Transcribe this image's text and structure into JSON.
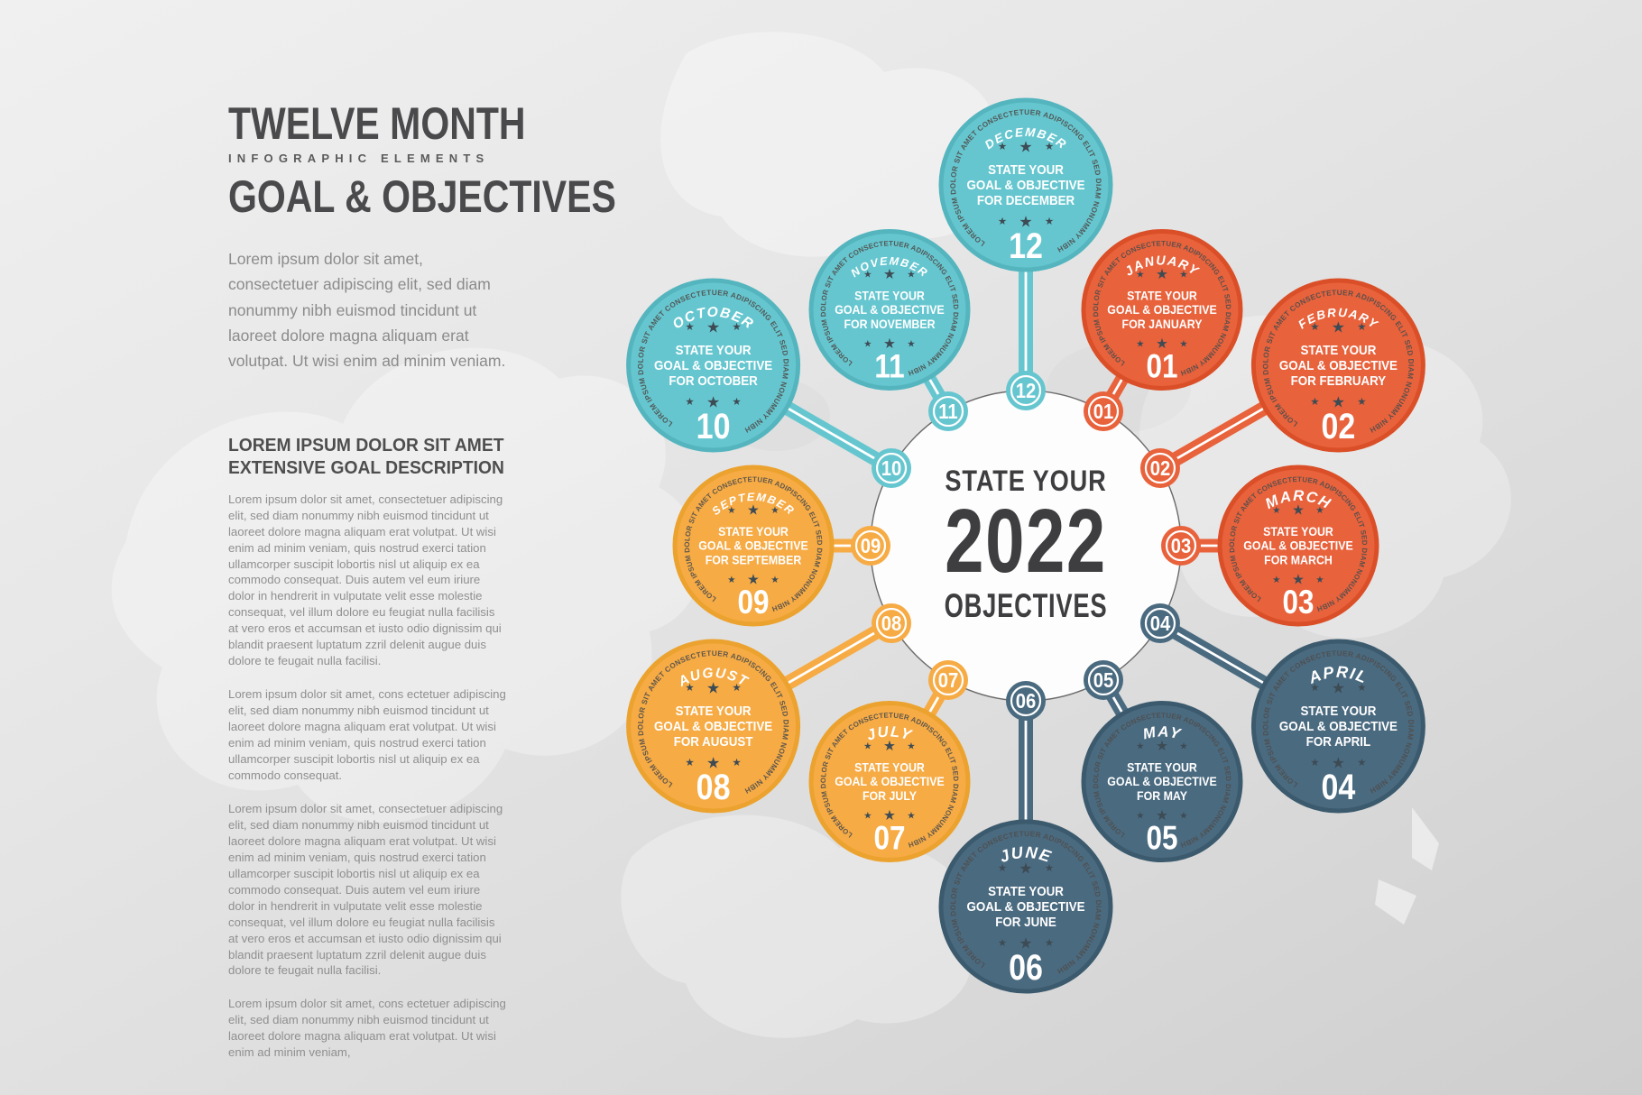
{
  "header": {
    "title1": "TWELVE MONTH",
    "subtitle": "INFOGRAPHIC ELEMENTS",
    "title2": "GOAL & OBJECTIVES",
    "intro": "Lorem ipsum dolor sit amet, consectetuer adipiscing elit, sed diam nonummy nibh euismod tincidunt ut laoreet dolore magna aliquam erat volutpat. Ut wisi enim ad minim veniam."
  },
  "section": {
    "heading1": "LOREM IPSUM DOLOR SIT AMET",
    "heading2": "EXTENSIVE GOAL DESCRIPTION",
    "paragraphs": [
      "Lorem ipsum dolor sit amet, consectetuer adipiscing elit, sed diam nonummy nibh euismod tincidunt ut laoreet dolore magna aliquam erat volutpat. Ut wisi enim ad minim veniam, quis nostrud exerci tation ullamcorper suscipit lobortis nisl ut aliquip ex ea commodo consequat. Duis autem vel eum iriure dolor in hendrerit in vulputate velit esse molestie consequat, vel illum dolore eu feugiat nulla facilisis at vero eros et accumsan et iusto odio dignissim qui blandit praesent luptatum zzril delenit augue duis dolore te feugait nulla facilisi.",
      "Lorem ipsum dolor sit amet, cons ectetuer adipiscing elit, sed diam nonummy nibh euismod tincidunt ut laoreet dolore magna aliquam erat volutpat. Ut wisi enim ad minim veniam, quis nostrud exerci tation ullamcorper suscipit lobortis nisl ut aliquip ex ea commodo consequat.",
      "Lorem ipsum dolor sit amet, consectetuer adipiscing elit, sed diam nonummy nibh euismod tincidunt ut laoreet dolore magna aliquam erat volutpat. Ut wisi enim ad minim veniam, quis nostrud exerci tation ullamcorper suscipit lobortis nisl ut aliquip ex ea commodo consequat. Duis autem vel eum iriure dolor in hendrerit in vulputate velit esse molestie consequat, vel illum dolore eu feugiat nulla facilisis at vero eros et accumsan et iusto odio dignissim qui blandit praesent luptatum zzril delenit augue duis dolore te feugait nulla facilisi.",
      "Lorem ipsum dolor sit amet, cons ectetuer adipiscing elit, sed diam nonummy nibh euismod tincidunt ut laoreet dolore magna aliquam erat volutpat. Ut wisi enim ad minim veniam,"
    ]
  },
  "infographic": {
    "center": {
      "top": "STATE YOUR",
      "year": "2022",
      "bottom": "OBJECTIVES"
    },
    "edge_text": "LOREM IPSUM DOLOR SIT AMET CONSECTETUER ADIPISCING ELIT SED DIAM NONUMMY NIBH",
    "palette": {
      "teal": {
        "fill": "#66c6cf",
        "edge": "#54b5bf"
      },
      "red": {
        "fill": "#e8623c",
        "edge": "#da4f27"
      },
      "slate": {
        "fill": "#4a6a80",
        "edge": "#3c5a6d"
      },
      "yellow": {
        "fill": "#f6ab45",
        "edge": "#eca22e"
      }
    },
    "star_color": "#3d4b54",
    "edge_text_color": "#4f4e4c",
    "ring_color": "#6b6b6b",
    "center_text_color": "#3e3e40",
    "months": [
      {
        "name": "JANUARY",
        "num": "01",
        "group": "red",
        "lines": [
          "STATE YOUR",
          "GOAL & OBJECTIVE",
          "FOR JANUARY"
        ]
      },
      {
        "name": "FEBRUARY",
        "num": "02",
        "group": "red",
        "lines": [
          "STATE YOUR",
          "GOAL & OBJECTIVE",
          "FOR FEBRUARY"
        ]
      },
      {
        "name": "MARCH",
        "num": "03",
        "group": "red",
        "lines": [
          "STATE YOUR",
          "GOAL & OBJECTIVE",
          "FOR MARCH"
        ]
      },
      {
        "name": "APRIL",
        "num": "04",
        "group": "slate",
        "lines": [
          "STATE YOUR",
          "GOAL & OBJECTIVE",
          "FOR APRIL"
        ]
      },
      {
        "name": "MAY",
        "num": "05",
        "group": "slate",
        "lines": [
          "STATE YOUR",
          "GOAL & OBJECTIVE",
          "FOR MAY"
        ]
      },
      {
        "name": "JUNE",
        "num": "06",
        "group": "slate",
        "lines": [
          "STATE YOUR",
          "GOAL & OBJECTIVE",
          "FOR JUNE"
        ]
      },
      {
        "name": "JULY",
        "num": "07",
        "group": "yellow",
        "lines": [
          "STATE YOUR",
          "GOAL & OBJECTIVE",
          "FOR JULY"
        ]
      },
      {
        "name": "AUGUST",
        "num": "08",
        "group": "yellow",
        "lines": [
          "STATE YOUR",
          "GOAL & OBJECTIVE",
          "FOR AUGUST"
        ]
      },
      {
        "name": "SEPTEMBER",
        "num": "09",
        "group": "yellow",
        "lines": [
          "STATE YOUR",
          "GOAL & OBJECTIVE",
          "FOR SEPTEMBER"
        ]
      },
      {
        "name": "OCTOBER",
        "num": "10",
        "group": "teal",
        "lines": [
          "STATE YOUR",
          "GOAL & OBJECTIVE",
          "FOR OCTOBER"
        ]
      },
      {
        "name": "NOVEMBER",
        "num": "11",
        "group": "teal",
        "lines": [
          "STATE YOUR",
          "GOAL & OBJECTIVE",
          "FOR NOVEMBER"
        ]
      },
      {
        "name": "DECEMBER",
        "num": "12",
        "group": "teal",
        "lines": [
          "STATE YOUR",
          "GOAL & OBJECTIVE",
          "FOR DECEMBER"
        ]
      }
    ]
  }
}
